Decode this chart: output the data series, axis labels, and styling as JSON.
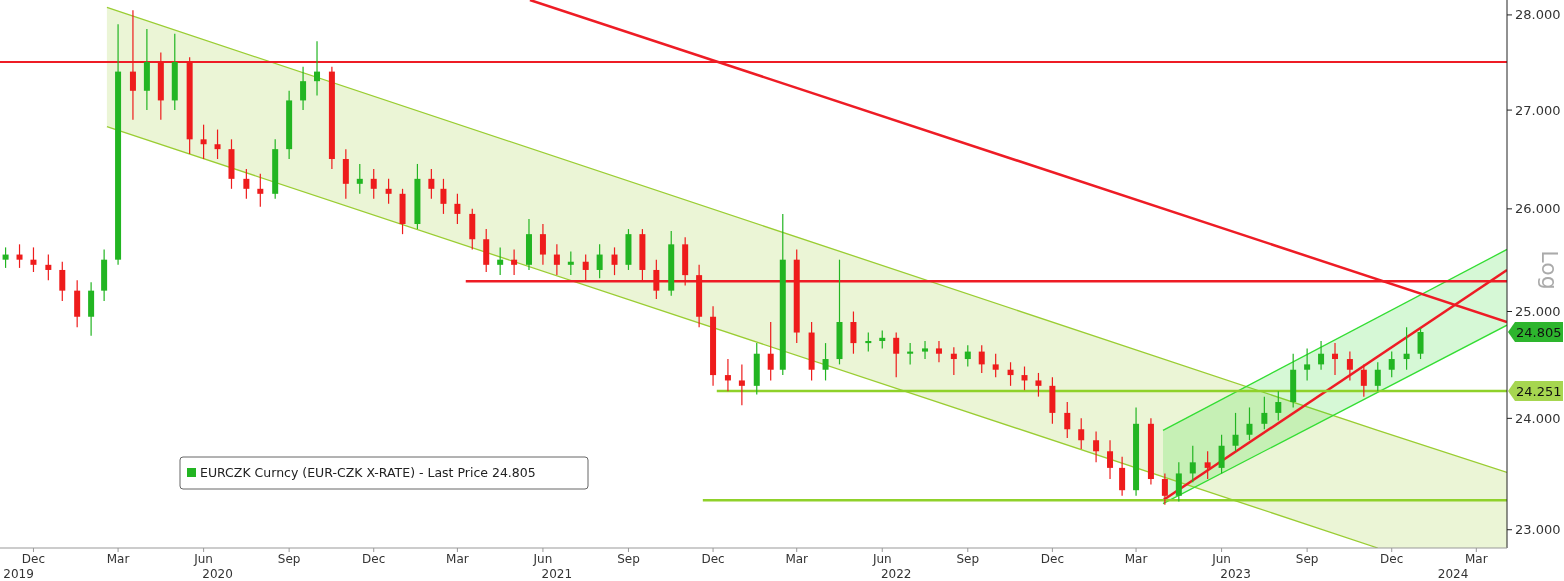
{
  "chart_data": {
    "type": "candlestick",
    "log": true,
    "legend": "bottom left",
    "ylabel": "Log",
    "xlim": [
      "2019-11-10",
      "2024-04-18"
    ],
    "ylim": [
      22.84,
      28.16
    ],
    "yticks": [
      {
        "value": 23,
        "label": "23.000"
      },
      {
        "value": 24,
        "label": "24.000"
      },
      {
        "value": 25,
        "label": "25.000"
      },
      {
        "value": 26,
        "label": "26.000"
      },
      {
        "value": 27,
        "label": "27.000"
      },
      {
        "value": 28,
        "label": "28.000"
      }
    ],
    "xticks": [
      {
        "value": "2019-12-16",
        "label": "Dec"
      },
      {
        "value": "2020-03-16",
        "label": "Mar"
      },
      {
        "value": "2020-06-16",
        "label": "Jun"
      },
      {
        "value": "2020-09-16",
        "label": "Sep"
      },
      {
        "value": "2020-12-16",
        "label": "Dec"
      },
      {
        "value": "2021-03-16",
        "label": "Mar"
      },
      {
        "value": "2021-06-16",
        "label": "Jun"
      },
      {
        "value": "2021-09-16",
        "label": "Sep"
      },
      {
        "value": "2021-12-16",
        "label": "Dec"
      },
      {
        "value": "2022-03-16",
        "label": "Mar"
      },
      {
        "value": "2022-06-16",
        "label": "Jun"
      },
      {
        "value": "2022-09-16",
        "label": "Sep"
      },
      {
        "value": "2022-12-16",
        "label": "Dec"
      },
      {
        "value": "2023-03-16",
        "label": "Mar"
      },
      {
        "value": "2023-06-16",
        "label": "Jun"
      },
      {
        "value": "2023-09-16",
        "label": "Sep"
      },
      {
        "value": "2023-12-16",
        "label": "Dec"
      },
      {
        "value": "2024-03-16",
        "label": "Mar"
      }
    ],
    "x2lim": [
      "2019-11-10",
      "2024-04-18"
    ],
    "x2ticks": [
      {
        "value": "2019-11-30",
        "label": "2019"
      },
      {
        "value": "2020-07-01",
        "label": "2020"
      },
      {
        "value": "2021-07-01",
        "label": "2021"
      },
      {
        "value": "2022-07-01",
        "label": "2022"
      },
      {
        "value": "2023-07-01",
        "label": "2023"
      },
      {
        "value": "2024-02-20",
        "label": "2024"
      }
    ],
    "ref_lines": [
      {
        "axis": "y",
        "value": 27.5,
        "color": "#ee1c25"
      }
    ],
    "annotations": [
      "24.805",
      {
        "text": "24.251",
        "x": "2024-04-18",
        "y": 24.251
      }
    ],
    "series": [
      {
        "type": "line",
        "color": "#9acd32",
        "x": [
          "2020-03-04",
          "2023-12-01",
          "2024-04-18"
        ],
        "values": [
          28.08,
          23.89,
          23.51
        ],
        "upper": [
          28.08,
          23.89,
          23.51
        ],
        "lower": [
          26.83,
          22.84,
          22.84
        ]
      },
      {
        "type": "line",
        "color": "#33dd33",
        "x": [
          "2023-04-14",
          "2024-04-18"
        ],
        "values": [
          23.89,
          25.6
        ],
        "upper": [
          23.89,
          25.6
        ],
        "lower": [
          23.23,
          24.87
        ]
      },
      {
        "type": "line",
        "color": "#9acd32",
        "x": [
          "2020-03-04",
          "2023-12-01"
        ],
        "values": [
          26.83,
          22.84
        ]
      },
      {
        "type": "line",
        "color": "#33dd33",
        "x": [
          "2023-04-14",
          "2024-04-18"
        ],
        "values": [
          23.23,
          24.87
        ]
      },
      {
        "type": "line",
        "color": "#ee1c25",
        "x": [
          "2021-06-02",
          "2024-04-18"
        ],
        "values": [
          28.16,
          24.9
        ]
      },
      {
        "type": "line",
        "color": "#ee1c25",
        "x": [
          "2023-04-14",
          "2024-04-18"
        ],
        "values": [
          23.26,
          25.4
        ]
      },
      {
        "type": "line",
        "color": "#ee1c25",
        "x": [
          "2021-03-25",
          "2024-04-18"
        ],
        "values": [
          25.29,
          25.29
        ]
      },
      {
        "type": "line",
        "color": "#8fd12a",
        "x": [
          "2021-12-20",
          "2024-04-18"
        ],
        "values": [
          24.251,
          24.251
        ]
      },
      {
        "type": "line",
        "color": "#8fd12a",
        "x": [
          "2021-12-05",
          "2024-04-18"
        ],
        "values": [
          23.26,
          23.26
        ]
      },
      {
        "type": "candlestick",
        "name": "EURCZK Curncy (EUR-CZK X-RATE) - Last Price 24.805",
        "color": "#22b522",
        "x": [
          "2019-11-16",
          "2019-12-01",
          "2019-12-16",
          "2020-01-01",
          "2020-01-16",
          "2020-02-01",
          "2020-02-16",
          "2020-03-01",
          "2020-03-16",
          "2020-04-01",
          "2020-04-16",
          "2020-05-01",
          "2020-05-16",
          "2020-06-01",
          "2020-06-16",
          "2020-07-01",
          "2020-07-16",
          "2020-08-01",
          "2020-08-16",
          "2020-09-01",
          "2020-09-16",
          "2020-10-01",
          "2020-10-16",
          "2020-11-01",
          "2020-11-16",
          "2020-12-01",
          "2020-12-16",
          "2021-01-01",
          "2021-01-16",
          "2021-02-01",
          "2021-02-16",
          "2021-03-01",
          "2021-03-16",
          "2021-04-01",
          "2021-04-16",
          "2021-05-01",
          "2021-05-16",
          "2021-06-01",
          "2021-06-16",
          "2021-07-01",
          "2021-07-16",
          "2021-08-01",
          "2021-08-16",
          "2021-09-01",
          "2021-09-16",
          "2021-10-01",
          "2021-10-16",
          "2021-11-01",
          "2021-11-16",
          "2021-12-01",
          "2021-12-16",
          "2022-01-01",
          "2022-01-16",
          "2022-02-01",
          "2022-02-16",
          "2022-03-01",
          "2022-03-16",
          "2022-04-01",
          "2022-04-16",
          "2022-05-01",
          "2022-05-16",
          "2022-06-01",
          "2022-06-16",
          "2022-07-01",
          "2022-07-16",
          "2022-08-01",
          "2022-08-16",
          "2022-09-01",
          "2022-09-16",
          "2022-10-01",
          "2022-10-16",
          "2022-11-01",
          "2022-11-16",
          "2022-12-01",
          "2022-12-16",
          "2023-01-01",
          "2023-01-16",
          "2023-02-01",
          "2023-02-16",
          "2023-03-01",
          "2023-03-16",
          "2023-04-01",
          "2023-04-16",
          "2023-05-01",
          "2023-05-16",
          "2023-06-01",
          "2023-06-16",
          "2023-07-01",
          "2023-07-16",
          "2023-08-01",
          "2023-08-16",
          "2023-09-01",
          "2023-09-16",
          "2023-10-01",
          "2023-10-16",
          "2023-11-01",
          "2023-11-16",
          "2023-12-01",
          "2023-12-16",
          "2024-01-01",
          "2024-01-16"
        ],
        "ohlc": [
          [
            25.5,
            25.62,
            25.42,
            25.55
          ],
          [
            25.55,
            25.65,
            25.42,
            25.5
          ],
          [
            25.5,
            25.62,
            25.38,
            25.45
          ],
          [
            25.45,
            25.55,
            25.3,
            25.4
          ],
          [
            25.4,
            25.48,
            25.1,
            25.2
          ],
          [
            25.2,
            25.3,
            24.85,
            24.95
          ],
          [
            24.95,
            25.28,
            24.77,
            25.2
          ],
          [
            25.2,
            25.6,
            25.1,
            25.5
          ],
          [
            25.5,
            27.9,
            25.45,
            27.4
          ],
          [
            27.4,
            28.05,
            26.9,
            27.2
          ],
          [
            27.2,
            27.85,
            27.0,
            27.5
          ],
          [
            27.5,
            27.6,
            26.9,
            27.1
          ],
          [
            27.1,
            27.8,
            27.0,
            27.5
          ],
          [
            27.5,
            27.55,
            26.55,
            26.7
          ],
          [
            26.7,
            26.85,
            26.5,
            26.65
          ],
          [
            26.65,
            26.8,
            26.5,
            26.6
          ],
          [
            26.6,
            26.7,
            26.2,
            26.3
          ],
          [
            26.3,
            26.4,
            26.1,
            26.2
          ],
          [
            26.2,
            26.35,
            26.02,
            26.15
          ],
          [
            26.15,
            26.7,
            26.1,
            26.6
          ],
          [
            26.6,
            27.2,
            26.5,
            27.1
          ],
          [
            27.1,
            27.45,
            27.0,
            27.3
          ],
          [
            27.3,
            27.72,
            27.15,
            27.4
          ],
          [
            27.4,
            27.45,
            26.4,
            26.5
          ],
          [
            26.5,
            26.6,
            26.1,
            26.25
          ],
          [
            26.25,
            26.45,
            26.15,
            26.3
          ],
          [
            26.3,
            26.4,
            26.1,
            26.2
          ],
          [
            26.2,
            26.3,
            26.05,
            26.15
          ],
          [
            26.15,
            26.2,
            25.75,
            25.85
          ],
          [
            25.85,
            26.45,
            25.8,
            26.3
          ],
          [
            26.3,
            26.4,
            26.1,
            26.2
          ],
          [
            26.2,
            26.3,
            25.95,
            26.05
          ],
          [
            26.05,
            26.15,
            25.85,
            25.95
          ],
          [
            25.95,
            26.0,
            25.6,
            25.7
          ],
          [
            25.7,
            25.8,
            25.38,
            25.45
          ],
          [
            25.45,
            25.62,
            25.35,
            25.5
          ],
          [
            25.5,
            25.6,
            25.35,
            25.45
          ],
          [
            25.45,
            25.9,
            25.4,
            25.75
          ],
          [
            25.75,
            25.85,
            25.45,
            25.55
          ],
          [
            25.55,
            25.65,
            25.35,
            25.45
          ],
          [
            25.45,
            25.58,
            25.35,
            25.48
          ],
          [
            25.48,
            25.55,
            25.3,
            25.4
          ],
          [
            25.4,
            25.65,
            25.32,
            25.55
          ],
          [
            25.55,
            25.62,
            25.35,
            25.45
          ],
          [
            25.45,
            25.8,
            25.4,
            25.75
          ],
          [
            25.75,
            25.8,
            25.3,
            25.4
          ],
          [
            25.4,
            25.5,
            25.12,
            25.2
          ],
          [
            25.2,
            25.78,
            25.15,
            25.65
          ],
          [
            25.65,
            25.72,
            25.25,
            25.35
          ],
          [
            25.35,
            25.45,
            24.85,
            24.95
          ],
          [
            24.95,
            25.05,
            24.3,
            24.4
          ],
          [
            24.4,
            24.55,
            24.25,
            24.35
          ],
          [
            24.35,
            24.5,
            24.12,
            24.3
          ],
          [
            24.3,
            24.7,
            24.22,
            24.6
          ],
          [
            24.6,
            24.9,
            24.35,
            24.45
          ],
          [
            24.45,
            25.95,
            24.4,
            25.5
          ],
          [
            25.5,
            25.6,
            24.7,
            24.8
          ],
          [
            24.8,
            24.9,
            24.35,
            24.45
          ],
          [
            24.45,
            24.7,
            24.35,
            24.55
          ],
          [
            24.55,
            25.5,
            24.5,
            24.9
          ],
          [
            24.9,
            25.0,
            24.6,
            24.7
          ],
          [
            24.7,
            24.8,
            24.62,
            24.72
          ],
          [
            24.72,
            24.82,
            24.65,
            24.75
          ],
          [
            24.75,
            24.8,
            24.38,
            24.6
          ],
          [
            24.6,
            24.7,
            24.5,
            24.62
          ],
          [
            24.62,
            24.72,
            24.55,
            24.65
          ],
          [
            24.65,
            24.72,
            24.52,
            24.6
          ],
          [
            24.6,
            24.66,
            24.4,
            24.55
          ],
          [
            24.55,
            24.68,
            24.48,
            24.62
          ],
          [
            24.62,
            24.68,
            24.42,
            24.5
          ],
          [
            24.5,
            24.6,
            24.38,
            24.45
          ],
          [
            24.45,
            24.52,
            24.3,
            24.4
          ],
          [
            24.4,
            24.48,
            24.26,
            24.35
          ],
          [
            24.35,
            24.42,
            24.2,
            24.3
          ],
          [
            24.3,
            24.38,
            23.95,
            24.05
          ],
          [
            24.05,
            24.15,
            23.82,
            23.9
          ],
          [
            23.9,
            24.0,
            23.72,
            23.8
          ],
          [
            23.8,
            23.88,
            23.6,
            23.7
          ],
          [
            23.7,
            23.8,
            23.45,
            23.55
          ],
          [
            23.55,
            23.65,
            23.3,
            23.35
          ],
          [
            23.35,
            24.1,
            23.3,
            23.95
          ],
          [
            23.95,
            24.0,
            23.4,
            23.45
          ],
          [
            23.45,
            23.5,
            23.22,
            23.3
          ],
          [
            23.3,
            23.6,
            23.25,
            23.5
          ],
          [
            23.5,
            23.75,
            23.42,
            23.6
          ],
          [
            23.6,
            23.7,
            23.45,
            23.55
          ],
          [
            23.55,
            23.85,
            23.5,
            23.75
          ],
          [
            23.75,
            24.05,
            23.7,
            23.85
          ],
          [
            23.85,
            24.1,
            23.8,
            23.95
          ],
          [
            23.95,
            24.2,
            23.9,
            24.05
          ],
          [
            24.05,
            24.25,
            23.98,
            24.15
          ],
          [
            24.15,
            24.6,
            24.1,
            24.45
          ],
          [
            24.45,
            24.65,
            24.35,
            24.5
          ],
          [
            24.5,
            24.72,
            24.45,
            24.6
          ],
          [
            24.6,
            24.7,
            24.4,
            24.55
          ],
          [
            24.55,
            24.62,
            24.35,
            24.45
          ],
          [
            24.45,
            24.5,
            24.2,
            24.3
          ],
          [
            24.3,
            24.52,
            24.25,
            24.45
          ],
          [
            24.45,
            24.62,
            24.38,
            24.55
          ],
          [
            24.55,
            24.85,
            24.45,
            24.6
          ],
          [
            24.6,
            24.84,
            24.55,
            24.805
          ]
        ],
        "colors": [
          "#22b522",
          "#ee1c1c",
          "#ee1c1c",
          "#ee1c1c",
          "#ee1c1c",
          "#ee1c1c",
          "#22b522",
          "#22b522",
          "#22b522",
          "#ee1c1c",
          "#22b522",
          "#ee1c1c",
          "#22b522",
          "#ee1c1c",
          "#ee1c1c",
          "#ee1c1c",
          "#ee1c1c",
          "#ee1c1c",
          "#ee1c1c",
          "#22b522",
          "#22b522",
          "#22b522",
          "#22b522",
          "#ee1c1c",
          "#ee1c1c",
          "#22b522",
          "#ee1c1c",
          "#ee1c1c",
          "#ee1c1c",
          "#22b522",
          "#ee1c1c",
          "#ee1c1c",
          "#ee1c1c",
          "#ee1c1c",
          "#ee1c1c",
          "#22b522",
          "#ee1c1c",
          "#22b522",
          "#ee1c1c",
          "#ee1c1c",
          "#22b522",
          "#ee1c1c",
          "#22b522",
          "#ee1c1c",
          "#22b522",
          "#ee1c1c",
          "#ee1c1c",
          "#22b522",
          "#ee1c1c",
          "#ee1c1c",
          "#ee1c1c",
          "#ee1c1c",
          "#ee1c1c",
          "#22b522",
          "#ee1c1c",
          "#22b522",
          "#ee1c1c",
          "#ee1c1c",
          "#22b522",
          "#22b522",
          "#ee1c1c",
          "#22b522",
          "#22b522",
          "#ee1c1c",
          "#22b522",
          "#22b522",
          "#ee1c1c",
          "#ee1c1c",
          "#22b522",
          "#ee1c1c",
          "#ee1c1c",
          "#ee1c1c",
          "#ee1c1c",
          "#ee1c1c",
          "#ee1c1c",
          "#ee1c1c",
          "#ee1c1c",
          "#ee1c1c",
          "#ee1c1c",
          "#ee1c1c",
          "#22b522",
          "#ee1c1c",
          "#ee1c1c",
          "#22b522",
          "#22b522",
          "#ee1c1c",
          "#22b522",
          "#22b522",
          "#22b522",
          "#22b522",
          "#22b522",
          "#22b522",
          "#22b522",
          "#22b522",
          "#ee1c1c",
          "#ee1c1c",
          "#ee1c1c",
          "#22b522",
          "#22b522",
          "#22b522",
          "#22b522"
        ]
      }
    ]
  }
}
